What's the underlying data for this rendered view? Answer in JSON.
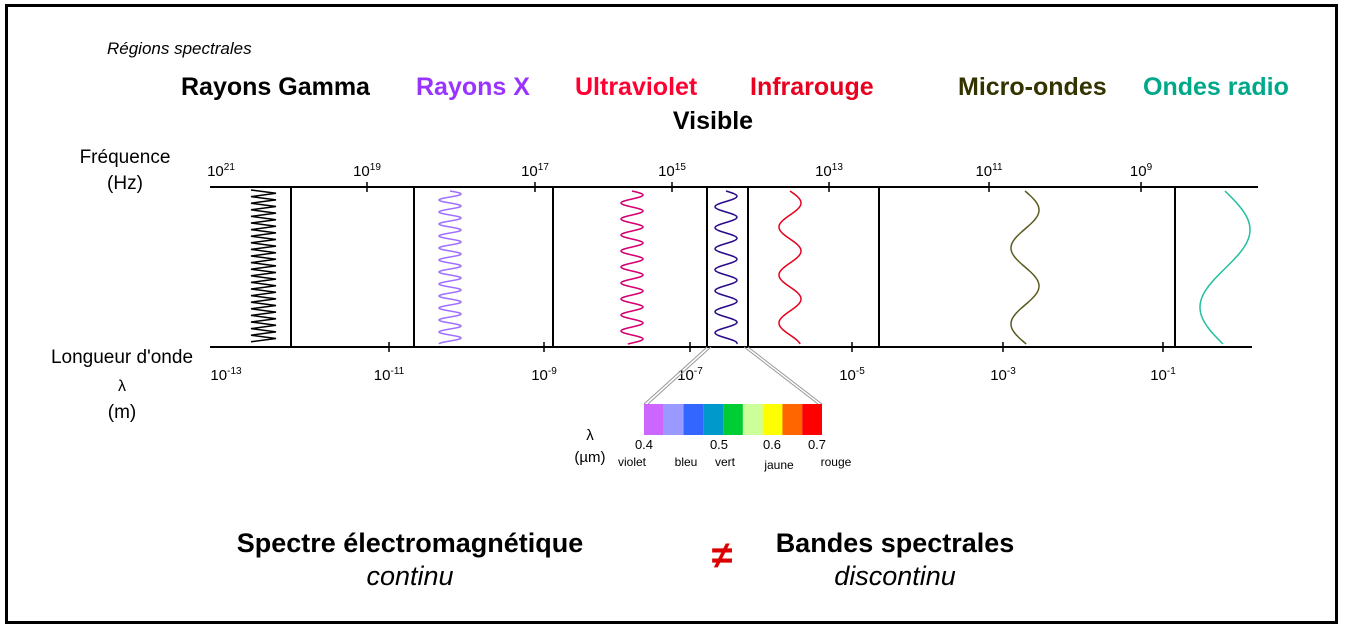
{
  "section_label": "Régions spectrales",
  "regions": {
    "gamma": {
      "label": "Rayons Gamma",
      "color": "#000000"
    },
    "xray": {
      "label": "Rayons X",
      "color": "#9933ff"
    },
    "uv": {
      "label": "Ultraviolet",
      "color": "#ff0033"
    },
    "ir": {
      "label": "Infrarouge",
      "color": "#e8001e"
    },
    "micro": {
      "label": "Micro-ondes",
      "color": "#333300"
    },
    "radio": {
      "label": "Ondes radio",
      "color": "#00a88a"
    },
    "visible": {
      "label": "Visible",
      "color": "#000000"
    }
  },
  "frequency": {
    "label_line1": "Fréquence",
    "label_line2": "(Hz)",
    "ticks": [
      {
        "base": "10",
        "exp": "21"
      },
      {
        "base": "10",
        "exp": "19"
      },
      {
        "base": "10",
        "exp": "17"
      },
      {
        "base": "10",
        "exp": "15"
      },
      {
        "base": "10",
        "exp": "13"
      },
      {
        "base": "10",
        "exp": "11"
      },
      {
        "base": "10",
        "exp": "9"
      }
    ]
  },
  "wavelength": {
    "label_line1": "Longueur d'onde",
    "label_line2": "λ",
    "label_line3": "(m)",
    "ticks": [
      {
        "base": "10",
        "exp": "-13"
      },
      {
        "base": "10",
        "exp": "-11"
      },
      {
        "base": "10",
        "exp": "-9"
      },
      {
        "base": "10",
        "exp": "-7"
      },
      {
        "base": "10",
        "exp": "-5"
      },
      {
        "base": "10",
        "exp": "-3"
      },
      {
        "base": "10",
        "exp": "-1"
      }
    ]
  },
  "visible_bar": {
    "lambda_symbol": "λ",
    "unit": "(µm)",
    "colors": [
      "#cc66ff",
      "#9999ff",
      "#3366ff",
      "#0099cc",
      "#00cc33",
      "#ccff99",
      "#ffff00",
      "#ff6600",
      "#ff0000"
    ],
    "values": [
      "0.4",
      "0.5",
      "0.6",
      "0.7"
    ],
    "names": [
      "violet",
      "bleu",
      "vert",
      "jaune",
      "rouge"
    ]
  },
  "bottom": {
    "left_title": "Spectre électromagnétique",
    "left_sub": "continu",
    "symbol": "≠",
    "symbol_color": "#dd0000",
    "right_title": "Bandes spectrales",
    "right_sub": "discontinu"
  }
}
